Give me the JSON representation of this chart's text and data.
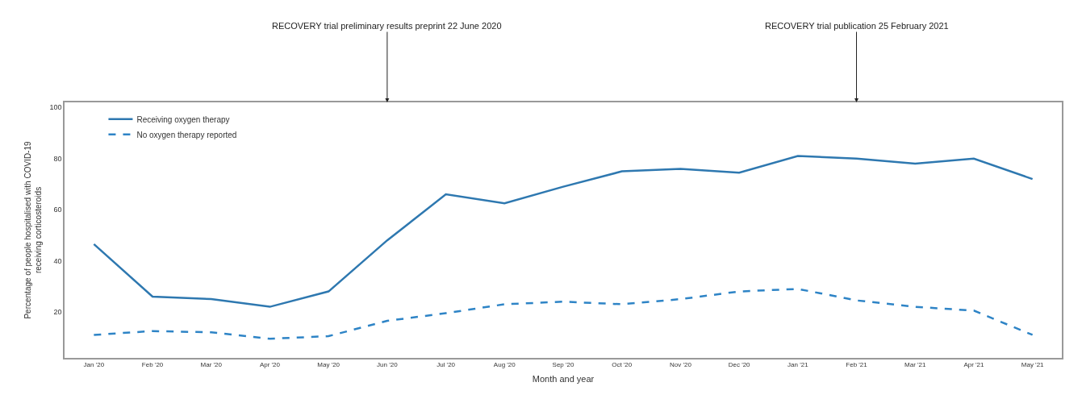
{
  "chart_data": {
    "type": "line",
    "xlabel": "Month and year",
    "ylabel": "Percentage of people hospitalised with COVID-19\nreceiving corticosteroids",
    "categories": [
      "Jan '20",
      "Feb '20",
      "Mar '20",
      "Apr '20",
      "May '20",
      "Jun '20",
      "Jul '20",
      "Aug '20",
      "Sep '20",
      "Oct '20",
      "Nov '20",
      "Dec '20",
      "Jan '21",
      "Feb '21",
      "Mar '21",
      "Apr '21",
      "May '21"
    ],
    "series": [
      {
        "name": "Receiving oxygen therapy",
        "color": "#2e78b0",
        "line_style": "solid",
        "values": [
          46.5,
          26,
          25,
          22,
          28,
          48,
          66,
          62.5,
          69,
          75,
          76,
          74.5,
          81,
          80,
          78,
          80,
          72
        ]
      },
      {
        "name": "No oxygen therapy reported",
        "color": "#2e84c6",
        "line_style": "dashed",
        "values": [
          11,
          12.5,
          12,
          9.5,
          10.5,
          16.5,
          19.5,
          23,
          24,
          23,
          25,
          28,
          29,
          24.5,
          22,
          20.5,
          11
        ]
      }
    ],
    "annotations": [
      {
        "text": "RECOVERY trial preliminary results preprint 22 June 2020",
        "x": "Jun '20"
      },
      {
        "text": "RECOVERY trial publication 25 February 2021",
        "x": "Feb '21"
      }
    ],
    "ylim": [
      2,
      102
    ],
    "yticks": [
      20,
      40,
      60,
      80,
      100
    ],
    "grid": false,
    "legend": "top left",
    "marker": "none"
  }
}
